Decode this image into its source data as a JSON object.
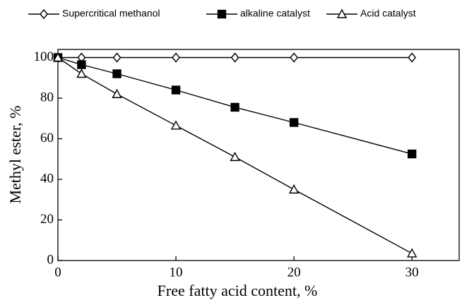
{
  "chart_data": {
    "type": "line",
    "x_label": "Free  fatty acid  content, %",
    "y_label": "Methyl  ester, %",
    "x": [
      0,
      2,
      5,
      10,
      15,
      20,
      30
    ],
    "series": [
      {
        "name": "Supercritical methanol",
        "color": "#000000",
        "marker": "diamond",
        "filled": false,
        "values": [
          100,
          100,
          100,
          100,
          100,
          100,
          100
        ]
      },
      {
        "name": "alkaline catalyst",
        "color": "#000000",
        "marker": "square",
        "filled": true,
        "values": [
          100,
          96.5,
          92,
          84,
          75.5,
          68,
          52.5
        ]
      },
      {
        "name": "Acid catalyst",
        "color": "#000000",
        "marker": "triangle",
        "filled": false,
        "values": [
          100,
          92,
          82,
          66.5,
          51,
          35,
          3.5
        ]
      }
    ],
    "xlim": [
      0,
      34
    ],
    "ylim": [
      0,
      104
    ],
    "xticks": [
      0,
      10,
      20,
      30
    ],
    "yticks": [
      0,
      20,
      40,
      60,
      80,
      100
    ]
  }
}
